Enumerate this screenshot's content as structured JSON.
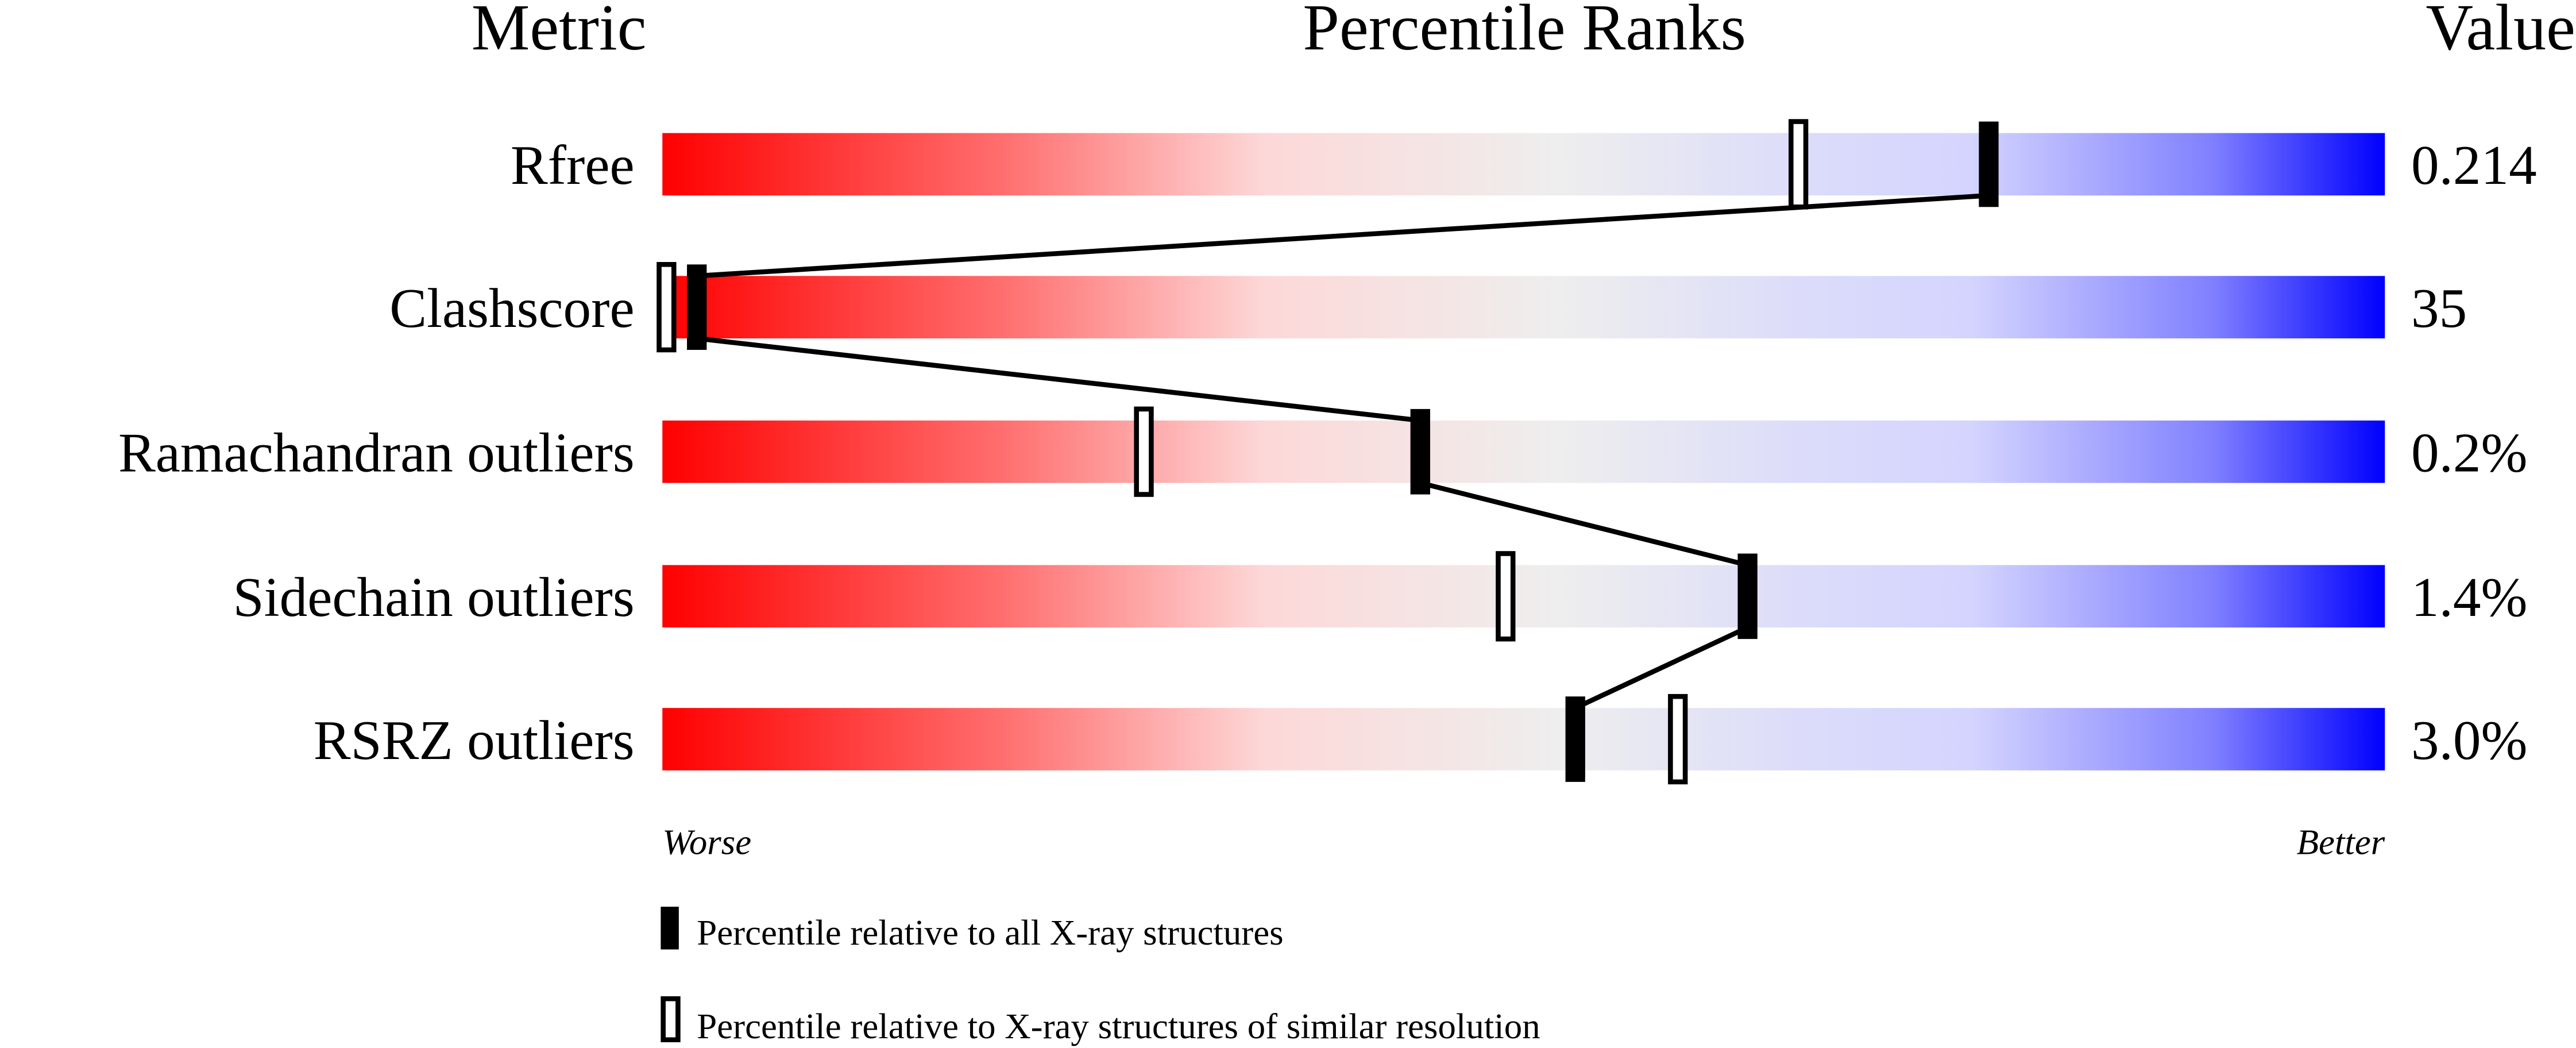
{
  "chart_data": {
    "type": "percentile-slider",
    "headers": {
      "metric": "Metric",
      "ranks": "Percentile Ranks",
      "value": "Value"
    },
    "axis": {
      "min": 0,
      "max": 100,
      "worse_label": "Worse",
      "better_label": "Better"
    },
    "gradient_colors": [
      "#ff0000",
      "#ff7070",
      "#fdd8d8",
      "#eeeeee",
      "#dcdcfa",
      "#d4d4ff",
      "#8080ff",
      "#0000ff"
    ],
    "metrics": [
      {
        "name": "Rfree",
        "value": "0.214",
        "percentile_all": 77,
        "percentile_similar": 66
      },
      {
        "name": "Clashscore",
        "value": "35",
        "percentile_all": 2,
        "percentile_similar": 0
      },
      {
        "name": "Ramachandran outliers",
        "value": "0.2%",
        "percentile_all": 44,
        "percentile_similar": 28
      },
      {
        "name": "Sidechain outliers",
        "value": "1.4%",
        "percentile_all": 63,
        "percentile_similar": 49
      },
      {
        "name": "RSRZ outliers",
        "value": "3.0%",
        "percentile_all": 53,
        "percentile_similar": 59
      }
    ],
    "legend": [
      {
        "marker": "filled",
        "label": "Percentile relative to all X-ray structures"
      },
      {
        "marker": "open",
        "label": "Percentile relative to X-ray structures of similar resolution"
      }
    ]
  }
}
